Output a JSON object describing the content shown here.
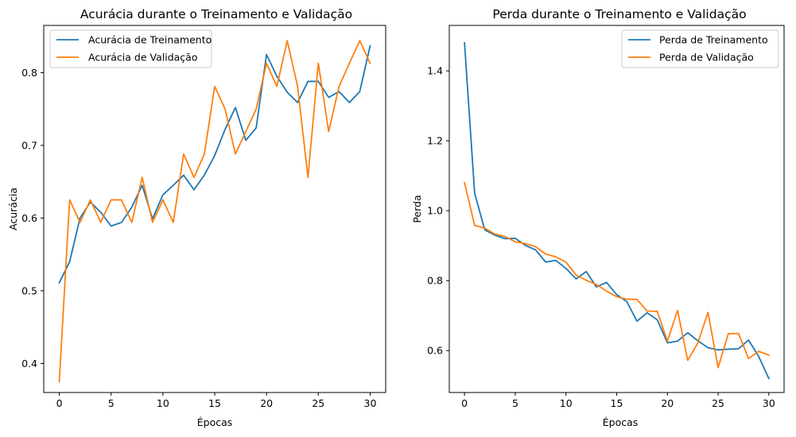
{
  "colors": {
    "train": "#1f77b4",
    "val": "#ff7f0e"
  },
  "chart_data": [
    {
      "type": "line",
      "title": "Acurácia durante o Treinamento e Validação",
      "xlabel": "Épocas",
      "ylabel": "Acurácia",
      "xlim": [
        -1.5,
        31.5
      ],
      "ylim": [
        0.36,
        0.865
      ],
      "xticks": [
        0,
        5,
        10,
        15,
        20,
        25,
        30
      ],
      "yticks": [
        0.4,
        0.5,
        0.6,
        0.7,
        0.8
      ],
      "ytick_labels": [
        "0.4",
        "0.5",
        "0.6",
        "0.7",
        "0.8"
      ],
      "legend_loc": "upper left",
      "grid": false,
      "x": [
        0,
        1,
        2,
        3,
        4,
        5,
        6,
        7,
        8,
        9,
        10,
        11,
        12,
        13,
        14,
        15,
        16,
        17,
        18,
        19,
        20,
        21,
        22,
        23,
        24,
        25,
        26,
        27,
        28,
        29,
        30
      ],
      "series": [
        {
          "name": "Acurácia de Treinamento",
          "color_key": "train",
          "values": [
            0.511,
            0.54,
            0.6,
            0.622,
            0.608,
            0.589,
            0.594,
            0.615,
            0.645,
            0.599,
            0.632,
            0.645,
            0.659,
            0.639,
            0.659,
            0.686,
            0.722,
            0.752,
            0.707,
            0.724,
            0.825,
            0.795,
            0.773,
            0.759,
            0.788,
            0.788,
            0.766,
            0.774,
            0.759,
            0.774,
            0.837
          ]
        },
        {
          "name": "Acurácia de Validação",
          "color_key": "val",
          "values": [
            0.375,
            0.625,
            0.594,
            0.625,
            0.594,
            0.625,
            0.625,
            0.594,
            0.656,
            0.594,
            0.625,
            0.594,
            0.688,
            0.656,
            0.688,
            0.781,
            0.75,
            0.688,
            0.719,
            0.75,
            0.813,
            0.781,
            0.844,
            0.781,
            0.656,
            0.813,
            0.719,
            0.781,
            0.813,
            0.844,
            0.813
          ]
        }
      ]
    },
    {
      "type": "line",
      "title": "Perda durante o Treinamento e Validação",
      "xlabel": "Épocas",
      "ylabel": "Perda",
      "xlim": [
        -1.5,
        31.5
      ],
      "ylim": [
        0.48,
        1.53
      ],
      "xticks": [
        0,
        5,
        10,
        15,
        20,
        25,
        30
      ],
      "yticks": [
        0.6,
        0.8,
        1.0,
        1.2,
        1.4
      ],
      "ytick_labels": [
        "0.6",
        "0.8",
        "1.0",
        "1.2",
        "1.4"
      ],
      "legend_loc": "upper right",
      "grid": false,
      "x": [
        0,
        1,
        2,
        3,
        4,
        5,
        6,
        7,
        8,
        9,
        10,
        11,
        12,
        13,
        14,
        15,
        16,
        17,
        18,
        19,
        20,
        21,
        22,
        23,
        24,
        25,
        26,
        27,
        28,
        29,
        30
      ],
      "series": [
        {
          "name": "Perda de Treinamento",
          "color_key": "train",
          "values": [
            1.48,
            1.05,
            0.945,
            0.93,
            0.92,
            0.921,
            0.901,
            0.888,
            0.853,
            0.858,
            0.835,
            0.805,
            0.826,
            0.782,
            0.795,
            0.76,
            0.74,
            0.684,
            0.708,
            0.688,
            0.622,
            0.627,
            0.651,
            0.628,
            0.608,
            0.602,
            0.604,
            0.605,
            0.63,
            0.583,
            0.52
          ]
        },
        {
          "name": "Perda de Validação",
          "color_key": "val",
          "values": [
            1.08,
            0.958,
            0.95,
            0.933,
            0.926,
            0.911,
            0.906,
            0.897,
            0.876,
            0.868,
            0.853,
            0.816,
            0.801,
            0.789,
            0.77,
            0.754,
            0.747,
            0.746,
            0.713,
            0.712,
            0.627,
            0.715,
            0.572,
            0.622,
            0.709,
            0.551,
            0.648,
            0.649,
            0.577,
            0.598,
            0.587
          ]
        }
      ]
    }
  ]
}
